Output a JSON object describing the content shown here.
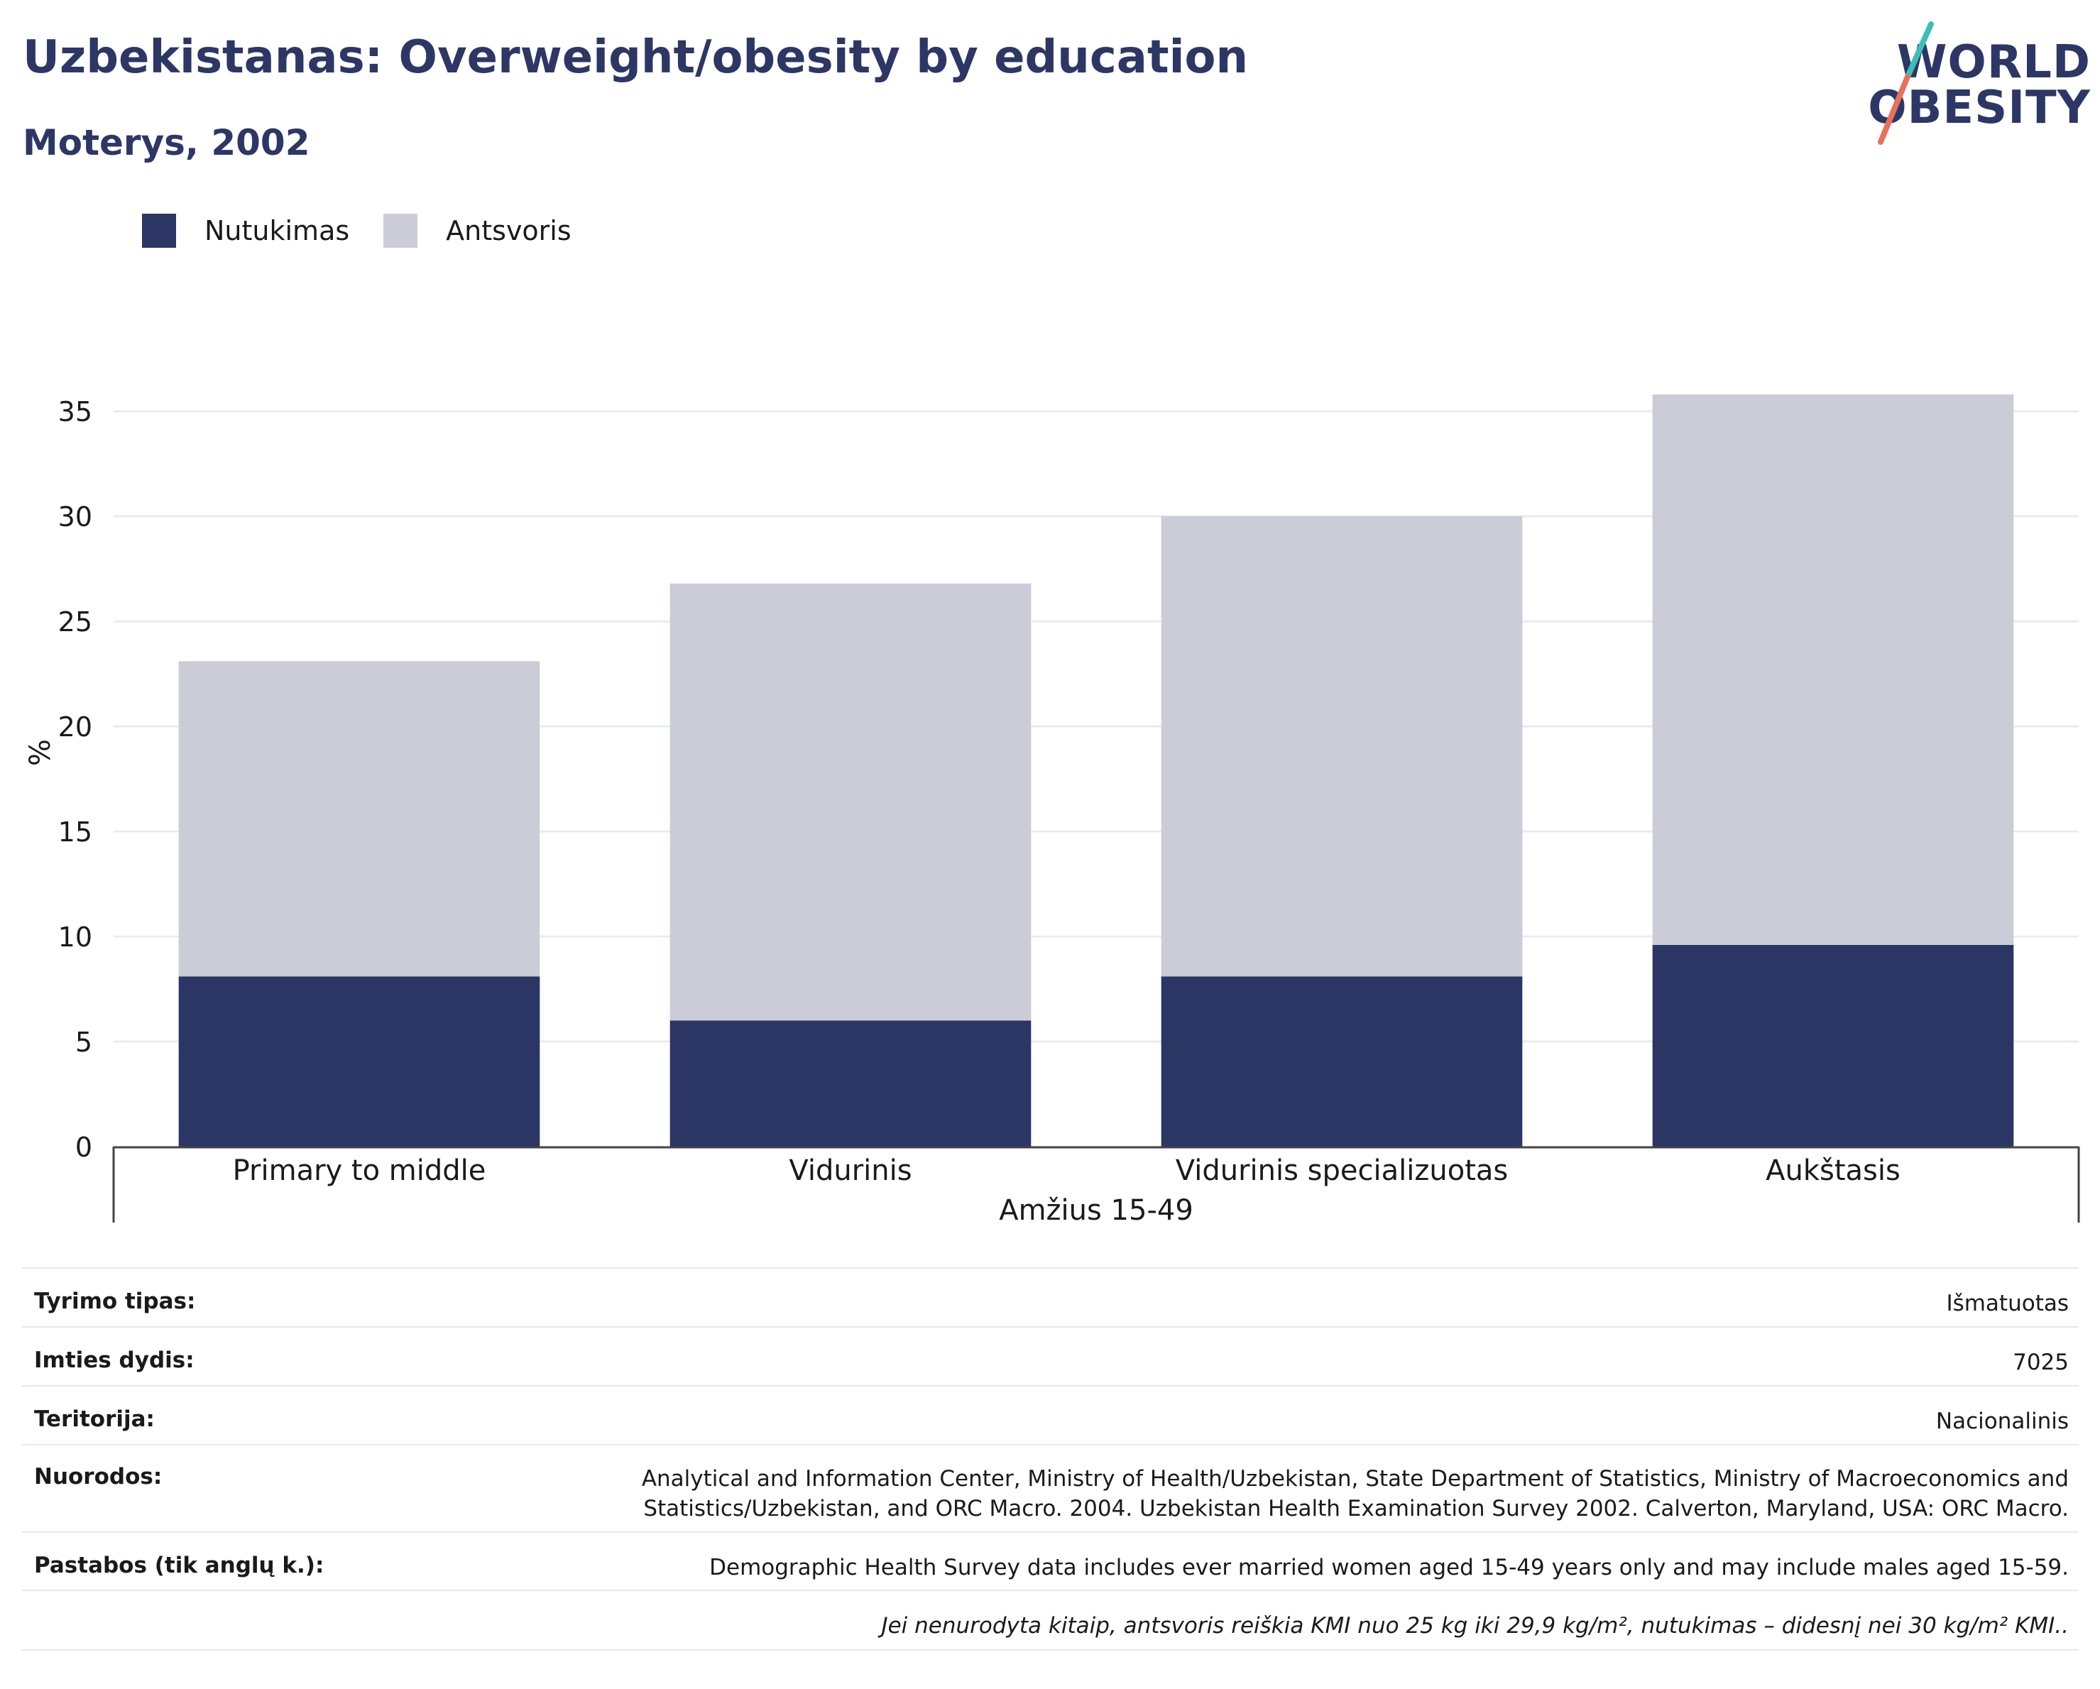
{
  "header": {
    "title": "Uzbekistanas: Overweight/obesity by education",
    "subtitle": "Moterys, 2002"
  },
  "logo": {
    "line1": "WORLD",
    "line2": "OBESITY"
  },
  "colors": {
    "obesity": "#2b3665",
    "overweight": "#cbccd8",
    "title": "#2c3766"
  },
  "legend": [
    {
      "label": "Nutukimas",
      "color": "#2b3665"
    },
    {
      "label": "Antsvoris",
      "color": "#cbccd8"
    }
  ],
  "chart_data": {
    "type": "bar",
    "stacked": true,
    "categories": [
      "Primary to middle",
      "Vidurinis",
      "Vidurinis specializuotas",
      "Aukštasis"
    ],
    "series": [
      {
        "name": "Nutukimas",
        "values": [
          8.1,
          6.0,
          8.1,
          9.6
        ]
      },
      {
        "name": "Antsvoris",
        "values": [
          15.0,
          20.8,
          21.9,
          26.2
        ]
      }
    ],
    "ylabel": "%",
    "xlabel": "Amžius 15-49",
    "ylim": [
      0,
      37
    ],
    "yticks": [
      0,
      5,
      10,
      15,
      20,
      25,
      30,
      35
    ],
    "grid": true,
    "legend_position": "top-left"
  },
  "info": {
    "rows": [
      {
        "label": "Tyrimo tipas:",
        "value": "Išmatuotas"
      },
      {
        "label": "Imties dydis:",
        "value": "7025"
      },
      {
        "label": "Teritorija:",
        "value": "Nacionalinis"
      },
      {
        "label": "Nuorodos:",
        "value_lines": [
          "Analytical and Information Center, Ministry of Health/Uzbekistan, State Department of Statistics, Ministry of Macroeconomics and",
          "Statistics/Uzbekistan, and ORC Macro. 2004. Uzbekistan Health Examination Survey 2002. Calverton, Maryland, USA: ORC Macro."
        ]
      },
      {
        "label": "Pastabos (tik anglų k.):",
        "value": "Demographic Health Survey data includes ever married women aged 15-49 years only and may include males aged 15-59."
      }
    ],
    "footnote": "Jei nenurodyta kitaip, antsvoris reiškia KMI nuo 25 kg iki 29,9 kg/m², nutukimas – didesnį nei 30 kg/m² KMI.."
  }
}
